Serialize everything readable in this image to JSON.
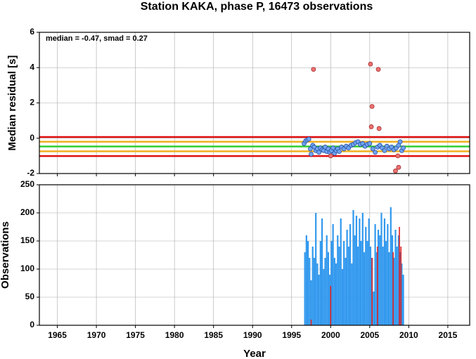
{
  "title": "Station KAKA, phase P, 16473 observations",
  "chart_data": [
    {
      "type": "scatter",
      "ylabel": "Median residual [s]",
      "annotation": "median = -0.47, smad = 0.27",
      "xlim": [
        1962.7,
        2017.8
      ],
      "xticks": [
        1965,
        1970,
        1975,
        1980,
        1985,
        1990,
        1995,
        2000,
        2005,
        2010,
        2015
      ],
      "ylim": [
        -2,
        6
      ],
      "yticks": [
        -2,
        0,
        2,
        4,
        6
      ],
      "grid": true,
      "hlines": [
        {
          "value": 0.07,
          "color": "#e01010"
        },
        {
          "value": -0.2,
          "color": "#f0b020"
        },
        {
          "value": -0.47,
          "color": "#30d030"
        },
        {
          "value": -0.74,
          "color": "#f0b020"
        },
        {
          "value": -1.01,
          "color": "#e01010"
        }
      ],
      "series": [
        {
          "color": "#6fa4f2",
          "edge": "#2a4fa0",
          "x": [
            1996.6,
            1996.8,
            1997.0,
            1997.2,
            1997.4,
            1997.5,
            1997.7,
            1997.9,
            1998.1,
            1998.3,
            1998.5,
            1998.7,
            1998.9,
            1999.1,
            1999.3,
            1999.5,
            1999.7,
            1999.9,
            2000.1,
            2000.3,
            2000.5,
            2000.7,
            2000.9,
            2001.1,
            2001.4,
            2001.7,
            2002.0,
            2002.3,
            2002.6,
            2002.9,
            2003.2,
            2003.5,
            2003.8,
            2004.1,
            2004.4,
            2004.7,
            2005.0,
            2005.4,
            2005.7,
            2006.0,
            2006.3,
            2006.6,
            2006.9,
            2007.2,
            2007.5,
            2007.8,
            2008.1,
            2008.4,
            2008.7,
            2008.9,
            2009.1,
            2009.3
          ],
          "values": [
            -0.3,
            -0.15,
            -0.1,
            -0.05,
            -0.6,
            -0.9,
            -0.4,
            -0.5,
            -0.7,
            -0.6,
            -0.8,
            -0.55,
            -0.65,
            -0.7,
            -0.5,
            -0.75,
            -0.6,
            -0.8,
            -0.7,
            -0.55,
            -0.85,
            -0.7,
            -0.6,
            -0.75,
            -0.5,
            -0.6,
            -0.45,
            -0.55,
            -0.4,
            -0.35,
            -0.25,
            -0.2,
            -0.35,
            -0.3,
            -0.45,
            -0.35,
            -0.3,
            -0.6,
            -0.8,
            -0.5,
            -0.4,
            -0.55,
            -0.7,
            -0.45,
            -0.6,
            -0.5,
            -0.65,
            -0.55,
            -0.4,
            -0.2,
            -0.7,
            -0.55
          ]
        },
        {
          "color": "#f07070",
          "edge": "#a03030",
          "x": [
            1997.8,
            2000.0,
            2005.1,
            2005.2,
            2005.3,
            2006.1,
            2006.2,
            2008.3,
            2008.6,
            2008.7
          ],
          "values": [
            3.9,
            -1.0,
            4.2,
            0.65,
            1.8,
            3.9,
            0.55,
            -1.85,
            -1.0,
            -1.65
          ]
        }
      ]
    },
    {
      "type": "histogram",
      "ylabel": "Observations",
      "xlabel": "Year",
      "xlim": [
        1962.7,
        2017.8
      ],
      "xticks": [
        1965,
        1970,
        1975,
        1980,
        1985,
        1990,
        1995,
        2000,
        2005,
        2010,
        2015
      ],
      "ylim": [
        0,
        250
      ],
      "yticks": [
        0,
        50,
        100,
        150,
        200,
        250
      ],
      "grid": true,
      "color": "#3399ee",
      "bins": [
        1996.6,
        1996.8,
        1997.0,
        1997.2,
        1997.4,
        1997.6,
        1997.8,
        1998.0,
        1998.2,
        1998.4,
        1998.6,
        1998.8,
        1999.0,
        1999.2,
        1999.4,
        1999.6,
        1999.8,
        2000.0,
        2000.2,
        2000.4,
        2000.6,
        2000.8,
        2001.0,
        2001.2,
        2001.4,
        2001.6,
        2001.8,
        2002.0,
        2002.2,
        2002.4,
        2002.6,
        2002.8,
        2003.0,
        2003.2,
        2003.4,
        2003.6,
        2003.8,
        2004.0,
        2004.2,
        2004.4,
        2004.6,
        2004.8,
        2005.0,
        2005.2,
        2005.4,
        2005.6,
        2005.8,
        2006.0,
        2006.2,
        2006.4,
        2006.6,
        2006.8,
        2007.0,
        2007.2,
        2007.4,
        2007.6,
        2007.8,
        2008.0,
        2008.2,
        2008.4,
        2008.6,
        2008.8,
        2009.0,
        2009.2,
        2009.4
      ],
      "values": [
        130,
        160,
        150,
        120,
        80,
        140,
        120,
        200,
        110,
        90,
        150,
        190,
        100,
        120,
        160,
        130,
        90,
        150,
        180,
        120,
        110,
        160,
        140,
        190,
        100,
        150,
        120,
        170,
        140,
        180,
        110,
        205,
        160,
        195,
        140,
        190,
        150,
        200,
        130,
        175,
        150,
        190,
        140,
        120,
        60,
        180,
        130,
        170,
        160,
        200,
        140,
        190,
        150,
        180,
        130,
        210,
        160,
        120,
        170,
        140,
        160,
        130,
        110,
        90
      ],
      "series": [
        {
          "color": "#e02020",
          "x": [
            1997.5,
            2000.0,
            2005.3,
            2006.0,
            2008.0,
            2008.8,
            2009.0
          ],
          "values": [
            10,
            70,
            120,
            140,
            130,
            175,
            140
          ]
        }
      ]
    }
  ]
}
